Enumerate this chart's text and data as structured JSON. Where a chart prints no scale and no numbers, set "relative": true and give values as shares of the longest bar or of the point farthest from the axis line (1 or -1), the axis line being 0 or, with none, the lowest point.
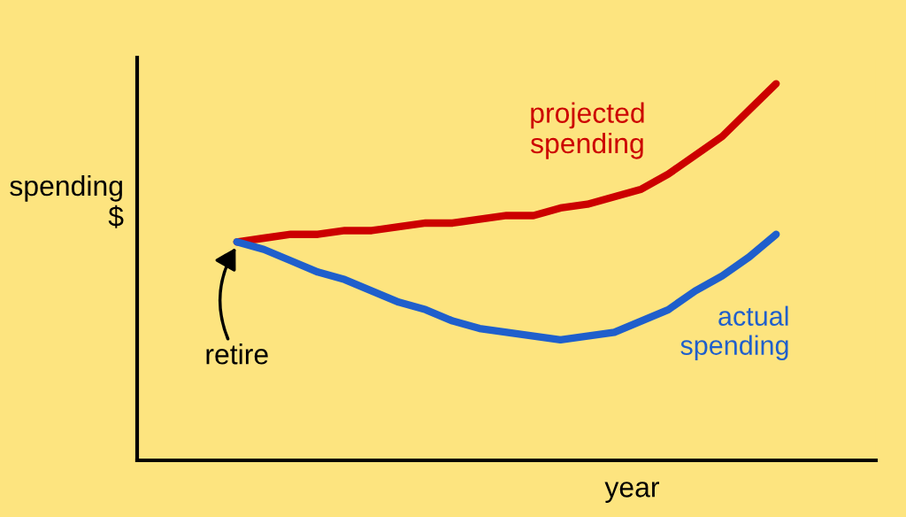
{
  "chart_data": {
    "type": "line",
    "relative": true,
    "xlabel": "year",
    "ylabel": "spending\n$",
    "categories": [
      null,
      null,
      null,
      null,
      null,
      null,
      null,
      null,
      null,
      null,
      null,
      null,
      null,
      null,
      null,
      null,
      null,
      null,
      null,
      null,
      null
    ],
    "series": [
      {
        "name": "projected\nspending",
        "color": "#cc0000",
        "values": [
          0.58,
          0.59,
          0.6,
          0.6,
          0.61,
          0.61,
          0.62,
          0.63,
          0.63,
          0.64,
          0.65,
          0.65,
          0.67,
          0.68,
          0.7,
          0.72,
          0.76,
          0.81,
          0.86,
          0.93,
          1
        ]
      },
      {
        "name": "actual\nspending",
        "color": "#1f5fcc",
        "values": [
          0.58,
          0.56,
          0.53,
          0.5,
          0.48,
          0.45,
          0.42,
          0.4,
          0.37,
          0.35,
          0.34,
          0.33,
          0.32,
          0.33,
          0.34,
          0.37,
          0.4,
          0.45,
          0.49,
          0.54,
          0.6
        ]
      }
    ],
    "annotations": [
      "retire"
    ],
    "grid": false,
    "legend": false,
    "marker": "none",
    "line_style": "solid"
  }
}
